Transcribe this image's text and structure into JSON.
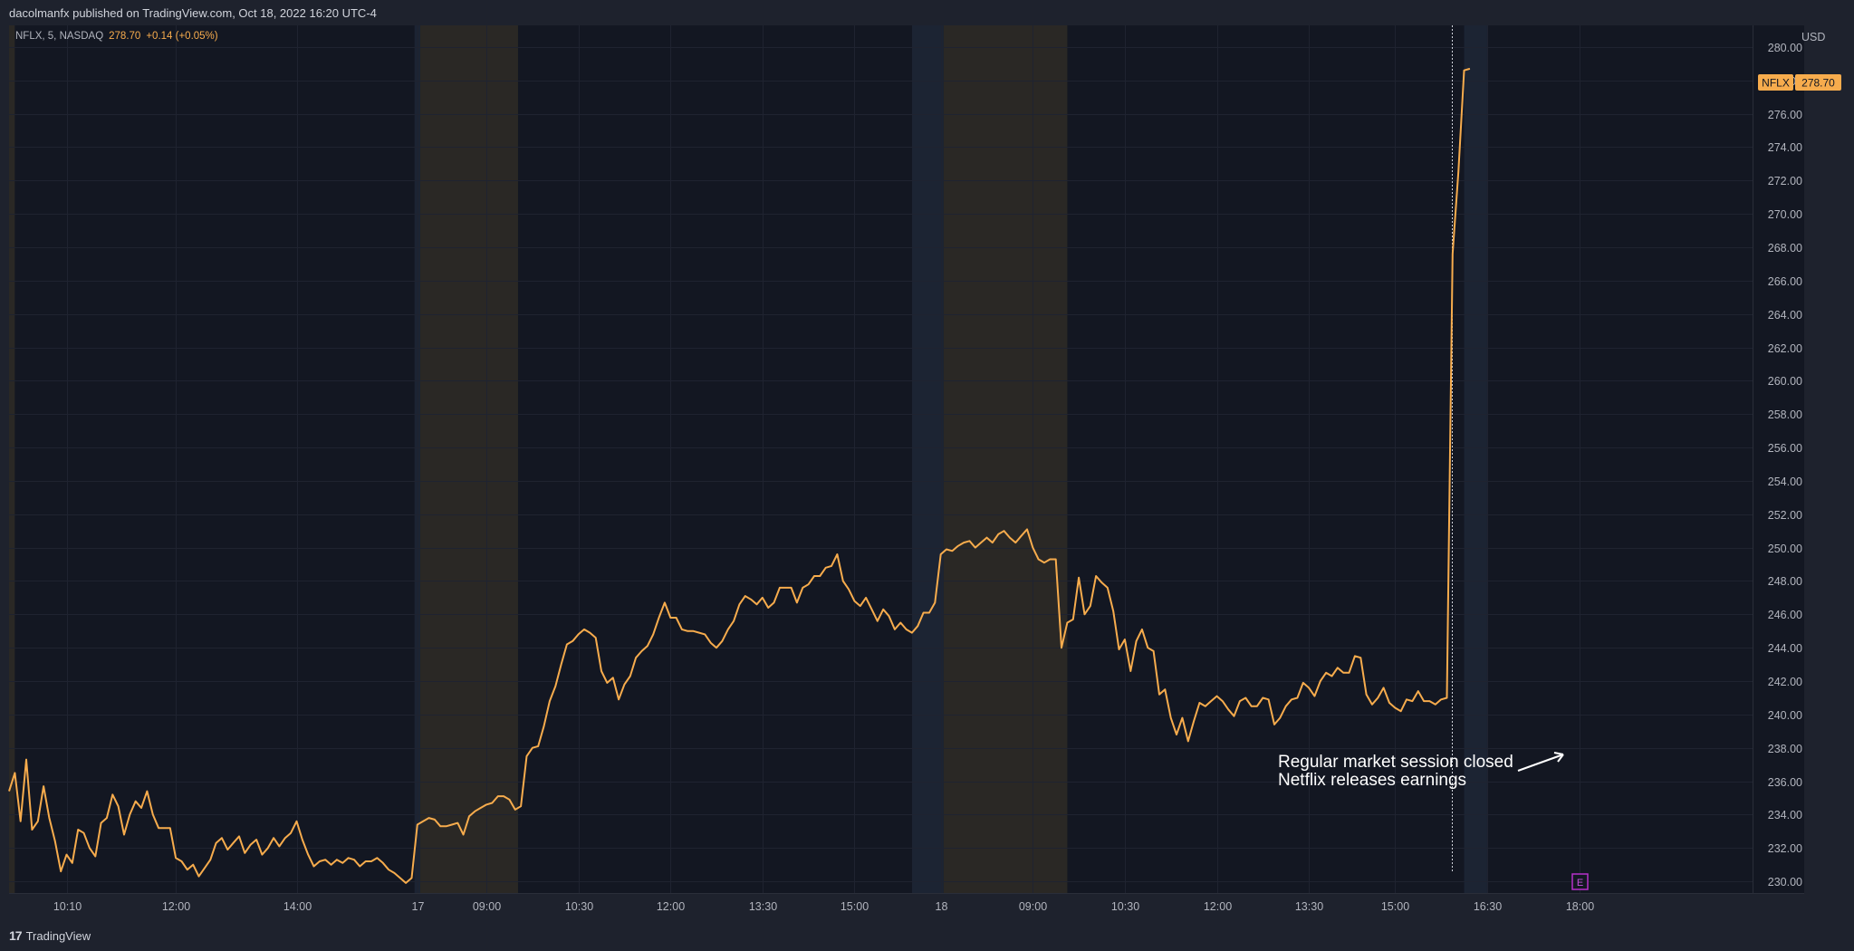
{
  "header": {
    "publisher": "dacolmanfx published on TradingView.com, Oct 18, 2022 16:20 UTC-4"
  },
  "footer": {
    "brand_label": "TradingView",
    "logo_text": "17"
  },
  "legend": {
    "symbol": "NFLX, 5, NASDAQ",
    "price": "278.70",
    "change": "+0.14 (+0.05%)"
  },
  "price_tag": {
    "symbol": "NFLX",
    "price": "278.70"
  },
  "currency_label": "USD",
  "annotation": {
    "line1": "Regular market session closed",
    "line2": "Netflix releases earnings"
  },
  "earnings_marker": "E",
  "colors": {
    "line": "#f7ac4d",
    "background": "#131722",
    "premarket": "#2a2825",
    "postmarket": "#1c2433"
  },
  "chart_data": {
    "type": "line",
    "title": "",
    "xlabel": "",
    "ylabel": "",
    "ylim": [
      229.3,
      281.3
    ],
    "y_ticks": [
      230,
      232,
      234,
      236,
      238,
      240,
      242,
      244,
      246,
      248,
      250,
      252,
      254,
      256,
      258,
      260,
      262,
      264,
      266,
      268,
      270,
      272,
      274,
      276,
      278,
      280
    ],
    "x_tick_labels": [
      {
        "i": 10,
        "label": "10:10"
      },
      {
        "i": 29,
        "label": "12:00"
      },
      {
        "i": 50,
        "label": "14:00"
      },
      {
        "i": 71,
        "label": "17"
      },
      {
        "i": 83,
        "label": "09:00"
      },
      {
        "i": 99,
        "label": "10:30"
      },
      {
        "i": 115,
        "label": "12:00"
      },
      {
        "i": 131,
        "label": "13:30"
      },
      {
        "i": 147,
        "label": "15:00"
      },
      {
        "i": 162,
        "label": "18"
      },
      {
        "i": 178,
        "label": "09:00"
      },
      {
        "i": 194,
        "label": "10:30"
      },
      {
        "i": 210,
        "label": "12:00"
      },
      {
        "i": 226,
        "label": "13:30"
      },
      {
        "i": 241,
        "label": "15:00"
      },
      {
        "i": 257,
        "label": "16:30"
      },
      {
        "i": 273,
        "label": "18:00"
      }
    ],
    "shaded_sessions": [
      {
        "kind": "premarket",
        "from": -1,
        "to": 1
      },
      {
        "kind": "postmarket",
        "from": 70.5,
        "to": 71.5
      },
      {
        "kind": "premarket",
        "from": 71.5,
        "to": 88.5
      },
      {
        "kind": "postmarket",
        "from": 157,
        "to": 162.5
      },
      {
        "kind": "premarket",
        "from": 162.5,
        "to": 184
      },
      {
        "kind": "postmarket",
        "from": 253,
        "to": 257
      }
    ],
    "grid": true,
    "legend_position": "top-left",
    "series": [
      {
        "name": "NFLX",
        "values": [
          235.4,
          236.5,
          233.6,
          237.3,
          233.1,
          233.6,
          235.7,
          233.8,
          232.4,
          230.6,
          231.6,
          231.1,
          233.1,
          232.9,
          232.0,
          231.5,
          233.5,
          233.8,
          235.2,
          234.5,
          232.8,
          234.0,
          234.8,
          234.4,
          235.4,
          234.0,
          233.2,
          233.2,
          233.2,
          231.4,
          231.2,
          230.7,
          231.0,
          230.3,
          230.8,
          231.3,
          232.3,
          232.6,
          231.9,
          232.3,
          232.7,
          231.7,
          232.2,
          232.5,
          231.6,
          232.0,
          232.6,
          232.1,
          232.6,
          232.9,
          233.6,
          232.5,
          231.6,
          230.9,
          231.2,
          231.3,
          231.0,
          231.3,
          231.1,
          231.4,
          231.3,
          230.9,
          231.2,
          231.2,
          231.4,
          231.1,
          230.7,
          230.5,
          230.2,
          229.9,
          230.2,
          233.4,
          233.6,
          233.8,
          233.7,
          233.3,
          233.3,
          233.4,
          233.5,
          232.8,
          233.9,
          234.2,
          234.4,
          234.6,
          234.7,
          235.1,
          235.1,
          234.9,
          234.3,
          234.5,
          237.5,
          238.0,
          238.1,
          239.3,
          240.8,
          241.7,
          243.0,
          244.2,
          244.4,
          244.8,
          245.1,
          244.9,
          244.6,
          242.6,
          241.9,
          242.2,
          240.9,
          241.8,
          242.3,
          243.4,
          243.8,
          244.1,
          244.8,
          245.8,
          246.7,
          245.8,
          245.8,
          245.1,
          245.0,
          245.0,
          244.9,
          244.8,
          244.3,
          244.0,
          244.4,
          245.1,
          245.6,
          246.6,
          247.1,
          246.9,
          246.6,
          247.0,
          246.4,
          246.7,
          247.6,
          247.6,
          247.6,
          246.7,
          247.6,
          247.8,
          248.3,
          248.3,
          248.8,
          248.9,
          249.6,
          248.0,
          247.5,
          246.8,
          246.5,
          247.0,
          246.3,
          245.6,
          246.3,
          245.9,
          245.1,
          245.5,
          245.1,
          244.9,
          245.3,
          246.1,
          246.1,
          246.7,
          249.6,
          249.9,
          249.8,
          250.1,
          250.3,
          250.4,
          250.0,
          250.3,
          250.6,
          250.3,
          250.8,
          251.0,
          250.6,
          250.3,
          250.7,
          251.1,
          250.0,
          249.3,
          249.1,
          249.3,
          249.3,
          244.0,
          245.5,
          245.7,
          248.2,
          246.0,
          246.5,
          248.3,
          247.9,
          247.6,
          246.2,
          243.9,
          244.5,
          242.6,
          244.4,
          245.1,
          244.0,
          243.8,
          241.2,
          241.5,
          239.8,
          238.8,
          239.8,
          238.4,
          239.6,
          240.7,
          240.5,
          240.8,
          241.1,
          240.8,
          240.3,
          239.9,
          240.8,
          241.0,
          240.5,
          240.5,
          241.0,
          240.9,
          239.4,
          239.8,
          240.5,
          240.9,
          241.0,
          241.9,
          241.6,
          241.1,
          242.0,
          242.5,
          242.3,
          242.8,
          242.5,
          242.5,
          243.5,
          243.4,
          241.2,
          240.6,
          241.0,
          241.6,
          240.7,
          240.4,
          240.2,
          240.9,
          240.8,
          241.4,
          240.8,
          240.8,
          240.6,
          240.9,
          241.0,
          267.6,
          272.5,
          278.6,
          278.7
        ]
      }
    ]
  }
}
